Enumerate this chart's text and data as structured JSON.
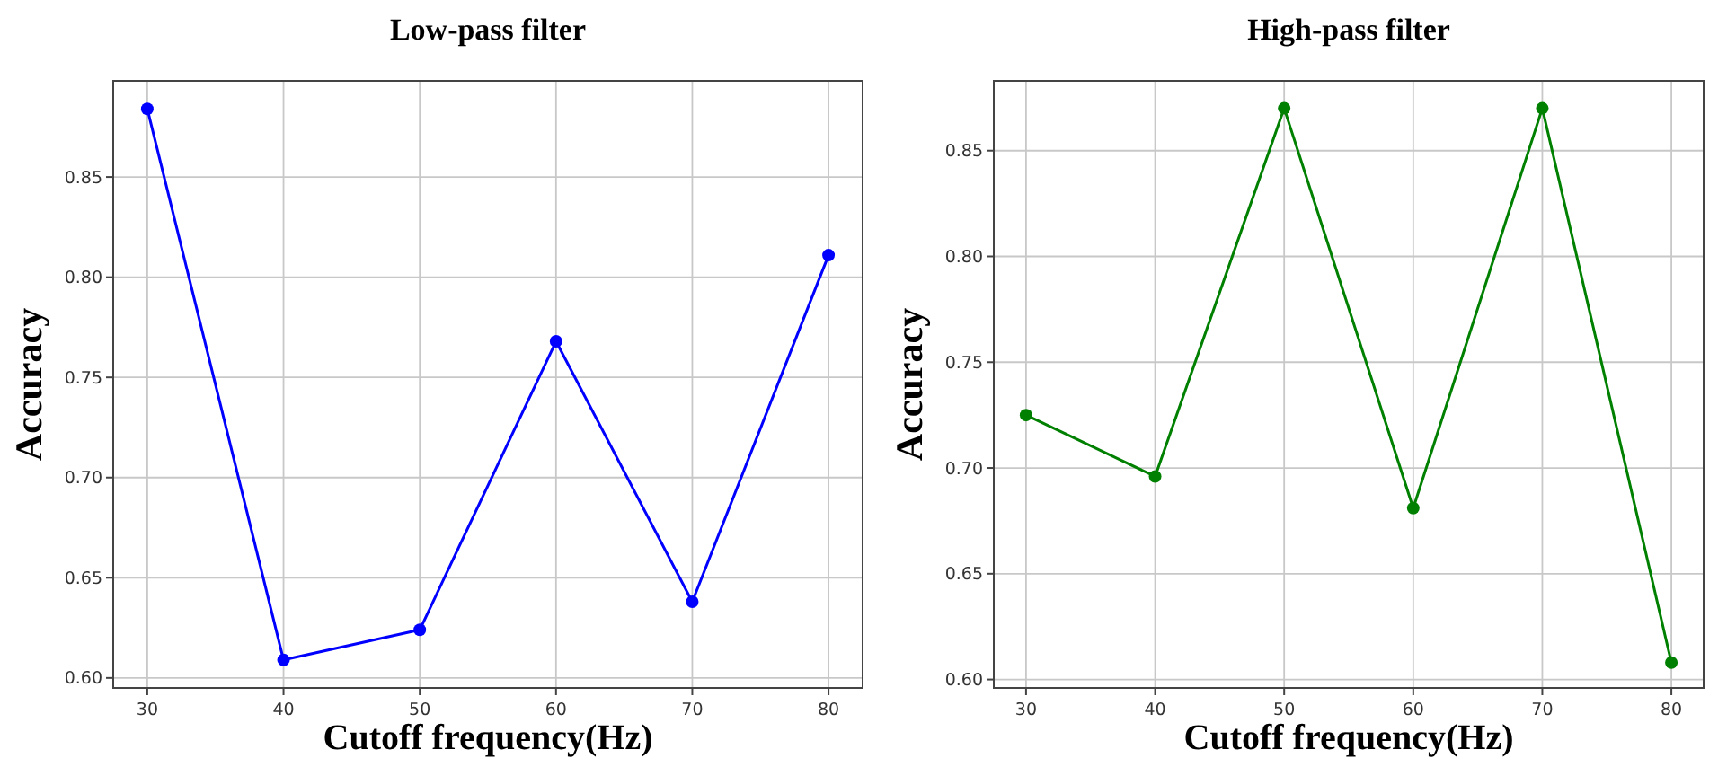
{
  "chart_data": [
    {
      "type": "line",
      "title": "Low-pass filter",
      "xlabel": "Cutoff frequency(Hz)",
      "ylabel": "Accuracy",
      "x": [
        30,
        40,
        50,
        60,
        70,
        80
      ],
      "series": [
        {
          "color": "#0000ff",
          "values": [
            0.884,
            0.609,
            0.624,
            0.768,
            0.638,
            0.811
          ]
        }
      ],
      "xlim": [
        27.5,
        82.5
      ],
      "ylim": [
        0.595,
        0.898
      ],
      "xticks": [
        30,
        40,
        50,
        60,
        70,
        80
      ],
      "yticks": [
        {
          "value": 0.6,
          "label": "0.60"
        },
        0.65,
        {
          "value": 0.7,
          "label": "0.70"
        },
        0.75,
        {
          "value": 0.8,
          "label": "0.80"
        },
        0.85
      ],
      "grid": true,
      "marker": "circle",
      "line_style": "solid"
    },
    {
      "type": "line",
      "title": "High-pass filter",
      "xlabel": "Cutoff frequency(Hz)",
      "ylabel": "Accuracy",
      "x": [
        30,
        40,
        50,
        60,
        70,
        80
      ],
      "series": [
        {
          "color": "#008000",
          "values": [
            0.725,
            0.696,
            0.87,
            0.681,
            0.87,
            0.608
          ]
        }
      ],
      "xlim": [
        27.5,
        82.5
      ],
      "ylim": [
        0.596,
        0.883
      ],
      "xticks": [
        30,
        40,
        50,
        60,
        70,
        80
      ],
      "yticks": [
        {
          "value": 0.6,
          "label": "0.60"
        },
        0.65,
        {
          "value": 0.7,
          "label": "0.70"
        },
        0.75,
        {
          "value": 0.8,
          "label": "0.80"
        },
        0.85
      ],
      "grid": true,
      "marker": "circle",
      "line_style": "solid"
    }
  ]
}
